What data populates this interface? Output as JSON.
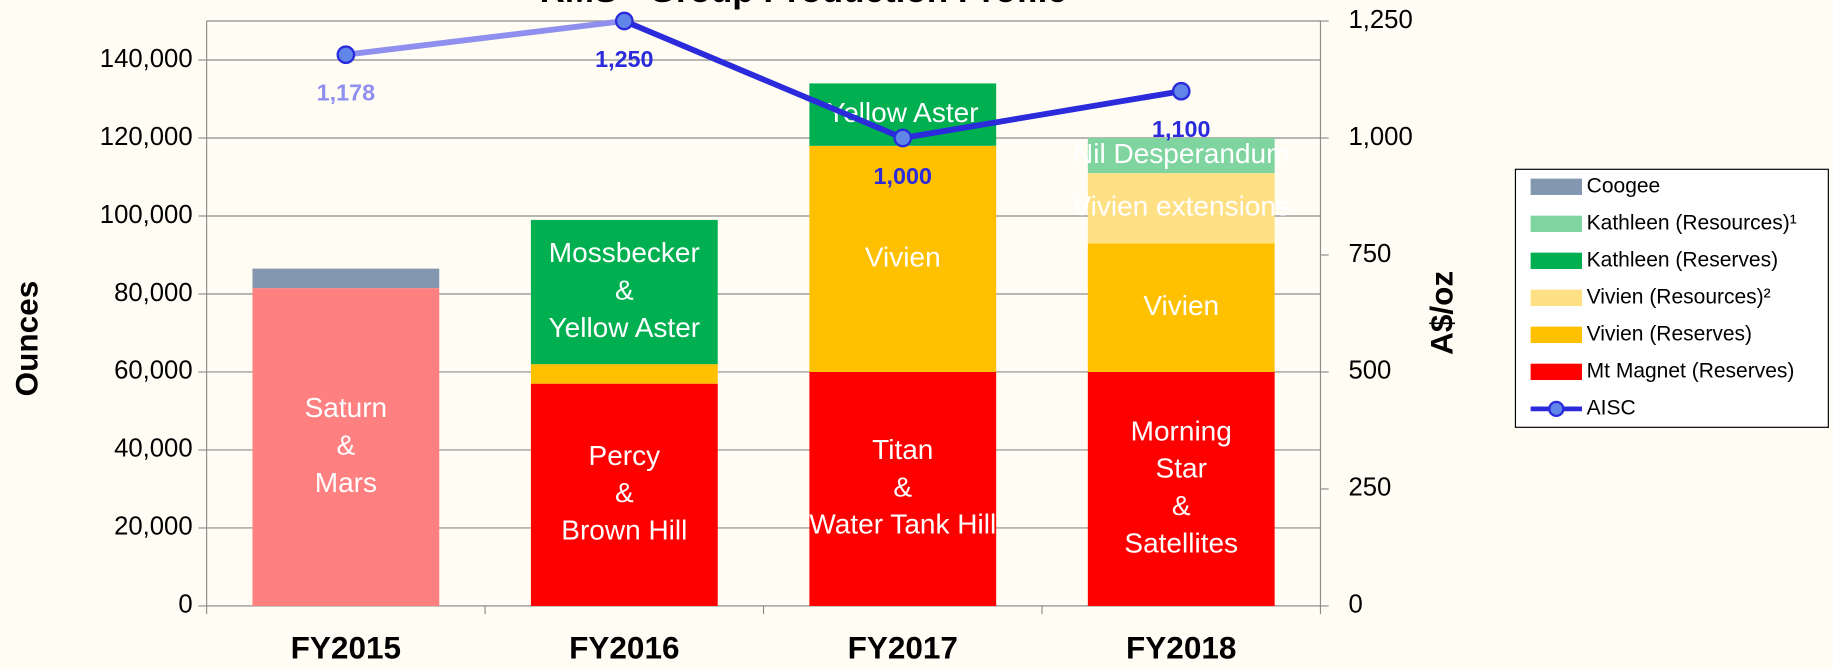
{
  "chart_data": {
    "type": "stacked_bar_line",
    "title": "RMS - Group Production Profile",
    "y_axis_label": "Ounces",
    "y2_axis_label": "A$/oz",
    "categories": [
      "FY2015",
      "FY2016",
      "FY2017",
      "FY2018"
    ],
    "ylim": [
      0,
      150000
    ],
    "yticks": [
      0,
      {
        "value": 20000,
        "label": "20,000"
      },
      {
        "value": 40000,
        "label": "40,000"
      },
      {
        "value": 60000,
        "label": "60,000"
      },
      {
        "value": 80000,
        "label": "80,000"
      },
      {
        "value": 100000,
        "label": "100,000"
      },
      {
        "value": 120000,
        "label": "120,000"
      },
      {
        "value": 140000,
        "label": "140,000"
      }
    ],
    "y2lim": [
      0,
      1250
    ],
    "y2ticks": [
      0,
      250,
      500,
      750,
      {
        "value": 1000,
        "label": "1,000"
      },
      {
        "value": 1250,
        "label": "1,250"
      }
    ],
    "grid": true,
    "legend": "right",
    "series": [
      {
        "name": "Mt Magnet (Reserves)",
        "color": "#ff0000",
        "colors": [
          "#ff8080",
          "#ff0000",
          "#ff0000",
          "#ff0000"
        ],
        "values": [
          81500,
          57000,
          60000,
          60000
        ],
        "labels": [
          [
            "Saturn",
            "&",
            "Mars"
          ],
          [
            "Percy",
            "&",
            "Brown Hill"
          ],
          [
            "Titan",
            "&",
            "Water Tank Hill"
          ],
          [
            "Morning",
            "Star",
            "&",
            "Satellites"
          ]
        ]
      },
      {
        "name": "Vivien (Reserves)",
        "color": "#ffc000",
        "values": [
          null,
          5000,
          58000,
          33000
        ],
        "labels": [
          null,
          null,
          [
            "Vivien"
          ],
          [
            "Vivien"
          ]
        ]
      },
      {
        "name": "Vivien (Resources)²",
        "color": "#ffe085",
        "values": [
          null,
          null,
          null,
          18000
        ],
        "labels": [
          null,
          null,
          null,
          [
            "Vivien extensions"
          ]
        ]
      },
      {
        "name": "Kathleen (Reserves)",
        "color": "#00b050",
        "values": [
          null,
          37000,
          16000,
          null
        ],
        "labels": [
          null,
          [
            "Mossbecker",
            "&",
            "Yellow Aster"
          ],
          [
            "Yellow Aster"
          ],
          null
        ]
      },
      {
        "name": "Kathleen (Resources)¹",
        "color": "#7fd4a0",
        "values": [
          null,
          null,
          null,
          9000
        ],
        "labels": [
          null,
          null,
          null,
          [
            "Nil Desperandum"
          ]
        ]
      },
      {
        "name": "Coogee",
        "color": "#8497b0",
        "values": [
          5000,
          null,
          null,
          null
        ]
      },
      {
        "name": "AISC",
        "type": "line",
        "axis": "y2",
        "color": "#2b2bdc",
        "colors": [
          "#8f8fef",
          "#2b2bdc",
          "#2b2bdc",
          "#2b2bdc"
        ],
        "values": [
          1178,
          1250,
          1000,
          1100
        ],
        "value_labels": [
          "1,178",
          "1,250",
          "1,000",
          "1,100"
        ]
      }
    ]
  }
}
